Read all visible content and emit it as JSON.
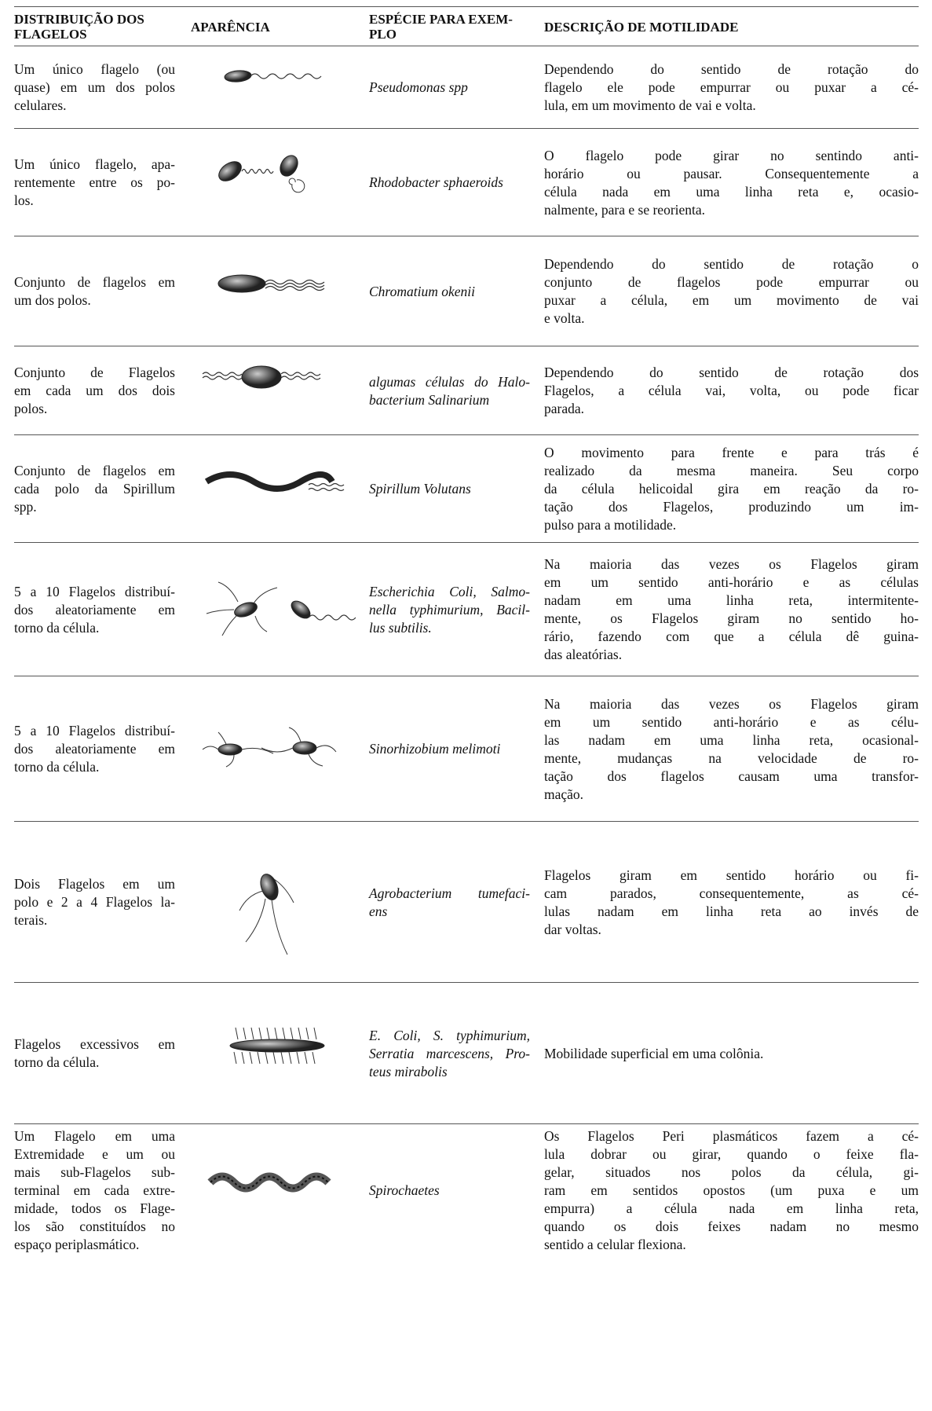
{
  "table": {
    "header": [
      [
        "DISTRIBUIÇÃO DOS",
        "FLAGELOS"
      ],
      [
        "APARÊNCIA"
      ],
      [
        "ESPÉCIE PARA EXEM-",
        "PLO"
      ],
      [
        "DESCRIÇÃO DE MOTILIDADE"
      ]
    ],
    "rows": [
      {
        "distribution": [
          "Um único flagelo (ou",
          "quase) em um dos polos",
          "celulares."
        ],
        "species": [
          "Pseudomonas spp"
        ],
        "description": [
          "Dependendo do sentido de rotação do",
          "flagelo ele pode empurrar ou puxar a cé-",
          "lula, em um movimento de vai e volta."
        ]
      },
      {
        "distribution": [
          "Um único flagelo, apa-",
          "rentemente entre os po-",
          "los."
        ],
        "species": [
          "Rhodobacter sphaeroids"
        ],
        "description": [
          "O flagelo pode girar no sentindo anti-",
          "horário ou pausar. Consequentemente a",
          "célula nada em uma linha reta e, ocasio-",
          "nalmente, para e se reorienta."
        ]
      },
      {
        "distribution": [
          "Conjunto de flagelos em",
          "um dos polos."
        ],
        "species": [
          "Chromatium okenii"
        ],
        "description": [
          "Dependendo do sentido de rotação o",
          "conjunto de flagelos pode empurrar ou",
          "puxar a célula, em um movimento de vai",
          "e volta."
        ]
      },
      {
        "distribution": [
          "Conjunto de Flagelos",
          "em cada um dos dois",
          "polos."
        ],
        "species": [
          "algumas células do Halo-",
          "bacterium Salinarium"
        ],
        "description": [
          "Dependendo do sentido de rotação dos",
          "Flagelos, a célula vai, volta, ou pode ficar",
          "parada."
        ]
      },
      {
        "distribution": [
          "Conjunto de flagelos em",
          "cada polo da Spirillum",
          "spp."
        ],
        "species": [
          "Spirillum Volutans"
        ],
        "description": [
          "O movimento para frente e para trás é",
          "realizado da mesma maneira. Seu corpo",
          "da célula helicoidal gira em reação da ro-",
          "tação dos Flagelos, produzindo um im-",
          "pulso para a motilidade."
        ]
      },
      {
        "distribution": [
          "5 a 10 Flagelos distribuí-",
          "dos aleatoriamente em",
          "torno da célula."
        ],
        "species": [
          "Escherichia Coli, Salmo-",
          "nella typhimurium, Bacil-",
          "lus subtilis."
        ],
        "description": [
          "Na maioria das vezes os Flagelos giram",
          "em um sentido anti-horário e as células",
          "nadam em uma linha reta, intermitente-",
          "mente, os Flagelos giram no sentido ho-",
          "rário, fazendo com que a célula dê guina-",
          "das aleatórias."
        ]
      },
      {
        "distribution": [
          "5 a 10 Flagelos distribuí-",
          "dos aleatoriamente em",
          "torno da célula."
        ],
        "species": [
          "Sinorhizobium melimoti"
        ],
        "description": [
          "Na maioria das vezes os Flagelos giram",
          "em um sentido anti-horário e as célu-",
          "las nadam em uma linha reta, ocasional-",
          "mente, mudanças na velocidade de ro-",
          "tação dos flagelos causam uma transfor-",
          "mação."
        ]
      },
      {
        "distribution": [
          "Dois Flagelos em um",
          "polo e 2 a 4 Flagelos la-",
          "terais."
        ],
        "species": [
          "Agrobacterium tumefaci-",
          "ens"
        ],
        "description": [
          "Flagelos giram em sentido horário ou fi-",
          "cam parados, consequentemente, as cé-",
          "lulas nadam em linha reta ao invés de",
          "dar voltas."
        ]
      },
      {
        "distribution": [
          "Flagelos excessivos em",
          "torno da célula."
        ],
        "species": [
          "E. Coli, S. typhimurium,",
          "Serratia marcescens, Pro-",
          "teus mirabolis"
        ],
        "description": [
          "Mobilidade superficial em uma colônia."
        ]
      },
      {
        "distribution": [
          "Um Flagelo em uma",
          "Extremidade e um ou",
          "mais sub-Flagelos sub-",
          "terminal em cada extre-",
          "midade, todos os Flage-",
          "los são constituídos no",
          "espaço periplasmático."
        ],
        "species": [
          "Spirochaetes"
        ],
        "description": [
          "Os Flagelos Peri plasmáticos fazem a cé-",
          "lula dobrar ou girar, quando o feixe fla-",
          "gelar, situados nos polos da célula, gi-",
          "ram em sentidos opostos (um puxa e um",
          "empurra) a célula nada em linha reta,",
          "quando os dois feixes nadam no mesmo",
          "sentido a celular flexiona."
        ]
      }
    ]
  }
}
